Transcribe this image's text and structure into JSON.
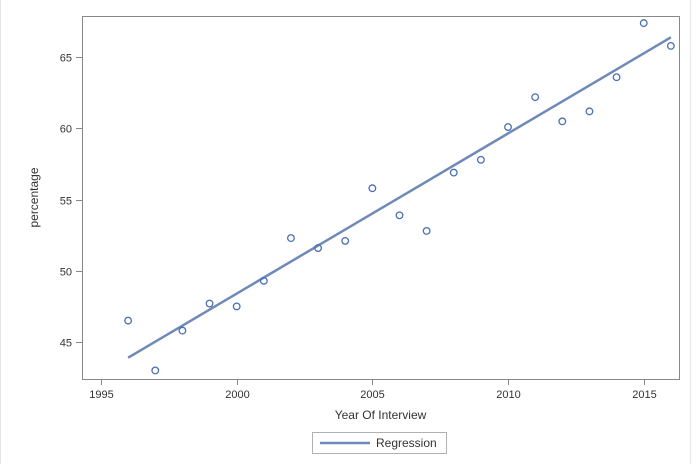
{
  "chart_data": {
    "type": "scatter",
    "xlabel": "Year Of Interview",
    "ylabel": "percentage",
    "xlim": [
      1994.3,
      2016.3
    ],
    "ylim": [
      42.4,
      67.9
    ],
    "xticks": [
      1995,
      2000,
      2005,
      2010,
      2015
    ],
    "yticks": [
      45,
      50,
      55,
      60,
      65
    ],
    "grid": false,
    "series": [
      {
        "marker": "open-circle",
        "color": "#4a6fb5",
        "x": [
          1996,
          1997,
          1998,
          1999,
          2000,
          2001,
          2002,
          2003,
          2004,
          2005,
          2006,
          2007,
          2008,
          2009,
          2010,
          2011,
          2012,
          2013,
          2014,
          2015,
          2016
        ],
        "y": [
          46.5,
          43.0,
          45.8,
          47.7,
          47.5,
          49.3,
          52.3,
          51.6,
          52.1,
          55.8,
          53.9,
          52.8,
          56.9,
          57.8,
          60.1,
          62.2,
          60.5,
          61.2,
          63.6,
          67.4,
          65.8
        ]
      },
      {
        "name": "Regression",
        "type": "line",
        "color": "#6f8ab8",
        "x": [
          1996,
          2016
        ],
        "y": [
          43.9,
          66.4
        ]
      }
    ],
    "legend": {
      "placement": "bottom-center",
      "entries": [
        "Regression"
      ]
    }
  }
}
